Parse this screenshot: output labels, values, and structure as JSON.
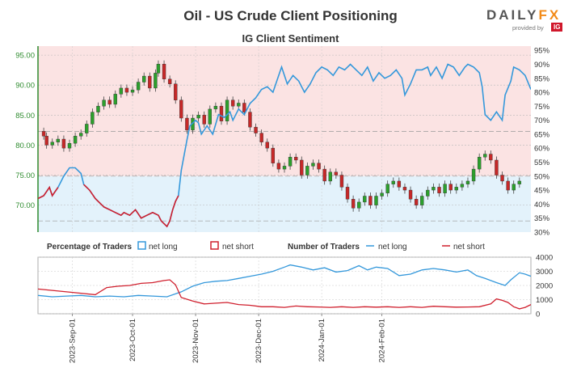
{
  "header": {
    "title": "Oil - US Crude Client Positioning",
    "subtitle": "IG Client Sentiment",
    "logo_text": "DAILYFX",
    "logo_provided": "provided by",
    "logo_ig": "IG"
  },
  "colors": {
    "up_candle": "#2ca02c",
    "down_candle": "#c62828",
    "net_long": "#3498db",
    "net_short": "#d0202e",
    "long_zone": "#e3f2fb",
    "short_zone": "#fbe3e3",
    "price_axis": "#2e8b2e"
  },
  "chart_data": [
    {
      "type": "candlestick+line",
      "title": "IG Client Sentiment",
      "price_axis": {
        "ticks": [
          "70.00",
          "75.00",
          "80.00",
          "85.00",
          "90.00",
          "95.00"
        ],
        "range": [
          65.5,
          96.5
        ]
      },
      "pct_axis": {
        "ticks": [
          "30%",
          "35%",
          "40%",
          "45%",
          "50%",
          "55%",
          "60%",
          "65%",
          "70%",
          "75%",
          "80%",
          "85%",
          "90%",
          "95%"
        ],
        "range": [
          30,
          96.5
        ]
      },
      "percentage_long": [
        [
          0,
          42
        ],
        [
          2,
          43
        ],
        [
          4,
          46
        ],
        [
          5,
          43
        ],
        [
          7,
          46
        ],
        [
          9,
          50
        ],
        [
          11,
          53
        ],
        [
          13,
          53
        ],
        [
          15,
          51
        ],
        [
          16,
          47
        ],
        [
          18,
          45
        ],
        [
          20,
          42
        ],
        [
          22,
          40
        ],
        [
          23,
          39
        ],
        [
          25,
          38
        ],
        [
          27,
          37
        ],
        [
          29,
          36
        ],
        [
          30,
          37
        ],
        [
          32,
          36
        ],
        [
          34,
          38
        ],
        [
          36,
          35
        ],
        [
          38,
          36
        ],
        [
          40,
          37
        ],
        [
          42,
          36
        ],
        [
          43,
          34
        ],
        [
          45,
          32
        ],
        [
          46,
          34
        ],
        [
          47,
          38
        ],
        [
          48,
          41
        ],
        [
          49,
          43
        ],
        [
          50,
          52
        ],
        [
          52,
          63
        ],
        [
          53,
          68
        ],
        [
          55,
          70
        ],
        [
          56,
          69
        ],
        [
          57,
          65
        ],
        [
          59,
          68
        ],
        [
          61,
          65
        ],
        [
          63,
          72
        ],
        [
          65,
          71
        ],
        [
          67,
          73
        ],
        [
          68,
          70
        ],
        [
          70,
          74
        ],
        [
          72,
          72
        ],
        [
          74,
          76
        ],
        [
          76,
          78
        ],
        [
          78,
          81
        ],
        [
          80,
          82
        ],
        [
          82,
          80
        ],
        [
          84,
          86
        ],
        [
          85,
          89
        ],
        [
          87,
          83
        ],
        [
          89,
          86
        ],
        [
          91,
          84
        ],
        [
          93,
          80
        ],
        [
          95,
          83
        ],
        [
          97,
          87
        ],
        [
          99,
          89
        ],
        [
          101,
          88
        ],
        [
          103,
          86
        ],
        [
          105,
          89
        ],
        [
          107,
          88
        ],
        [
          109,
          90
        ],
        [
          111,
          88
        ],
        [
          113,
          86
        ],
        [
          115,
          89
        ],
        [
          117,
          84
        ],
        [
          119,
          87
        ],
        [
          121,
          85
        ],
        [
          123,
          86
        ],
        [
          125,
          88
        ],
        [
          127,
          85
        ],
        [
          128,
          79
        ],
        [
          130,
          83
        ],
        [
          132,
          88
        ],
        [
          134,
          88
        ],
        [
          136,
          89
        ],
        [
          137,
          86
        ],
        [
          139,
          89
        ],
        [
          141,
          85
        ],
        [
          143,
          90
        ],
        [
          145,
          89
        ],
        [
          147,
          86
        ],
        [
          149,
          89
        ],
        [
          150,
          90
        ],
        [
          152,
          89
        ],
        [
          154,
          87
        ],
        [
          155,
          82
        ],
        [
          156,
          72
        ],
        [
          158,
          70
        ],
        [
          160,
          73
        ],
        [
          162,
          70
        ],
        [
          163,
          79
        ],
        [
          165,
          84
        ],
        [
          166,
          89
        ],
        [
          168,
          88
        ],
        [
          170,
          86
        ],
        [
          172,
          81
        ]
      ],
      "candles_close": [
        [
          0,
          82.3
        ],
        [
          2,
          81.5
        ],
        [
          3,
          80.0
        ],
        [
          5,
          80.5
        ],
        [
          7,
          81.0
        ],
        [
          9,
          79.5
        ],
        [
          11,
          80.3
        ],
        [
          13,
          81.5
        ],
        [
          15,
          82.0
        ],
        [
          17,
          83.5
        ],
        [
          19,
          85.5
        ],
        [
          21,
          86.5
        ],
        [
          23,
          87.5
        ],
        [
          25,
          86.8
        ],
        [
          27,
          88.5
        ],
        [
          29,
          89.5
        ],
        [
          31,
          88.8
        ],
        [
          33,
          89.2
        ],
        [
          35,
          90.5
        ],
        [
          37,
          91.5
        ],
        [
          39,
          89.5
        ],
        [
          41,
          92.0
        ],
        [
          42,
          93.5
        ],
        [
          44,
          91.0
        ],
        [
          46,
          90.2
        ],
        [
          48,
          87.5
        ],
        [
          50,
          84.5
        ],
        [
          52,
          82.5
        ],
        [
          54,
          84.5
        ],
        [
          56,
          85.0
        ],
        [
          58,
          83.5
        ],
        [
          60,
          86.0
        ],
        [
          62,
          86.5
        ],
        [
          64,
          84.0
        ],
        [
          66,
          87.5
        ],
        [
          68,
          86.5
        ],
        [
          70,
          87.0
        ],
        [
          72,
          85.5
        ],
        [
          74,
          83.0
        ],
        [
          76,
          82.0
        ],
        [
          78,
          80.5
        ],
        [
          80,
          79.5
        ],
        [
          82,
          77.0
        ],
        [
          84,
          76.0
        ],
        [
          86,
          76.5
        ],
        [
          88,
          78.0
        ],
        [
          90,
          77.5
        ],
        [
          92,
          75.0
        ],
        [
          94,
          76.5
        ],
        [
          96,
          77.0
        ],
        [
          98,
          76.0
        ],
        [
          100,
          74.0
        ],
        [
          102,
          75.5
        ],
        [
          104,
          75.0
        ],
        [
          106,
          73.0
        ],
        [
          108,
          71.0
        ],
        [
          110,
          69.5
        ],
        [
          112,
          70.5
        ],
        [
          114,
          71.5
        ],
        [
          116,
          70.0
        ],
        [
          118,
          71.5
        ],
        [
          120,
          72.0
        ],
        [
          122,
          73.5
        ],
        [
          124,
          74.0
        ],
        [
          126,
          73.0
        ],
        [
          128,
          72.5
        ],
        [
          130,
          71.0
        ],
        [
          132,
          70.0
        ],
        [
          134,
          71.5
        ],
        [
          136,
          72.5
        ],
        [
          138,
          73.0
        ],
        [
          140,
          72.0
        ],
        [
          142,
          73.5
        ],
        [
          144,
          72.5
        ],
        [
          146,
          73.0
        ],
        [
          148,
          73.5
        ],
        [
          150,
          74.0
        ],
        [
          152,
          76.0
        ],
        [
          154,
          78.0
        ],
        [
          156,
          78.5
        ],
        [
          158,
          77.5
        ],
        [
          160,
          75.0
        ],
        [
          162,
          74.0
        ],
        [
          164,
          72.5
        ],
        [
          166,
          73.5
        ],
        [
          168,
          74.0
        ]
      ],
      "x_ticks": [
        "2023-Sep-01",
        "2023-Oct-01",
        "2023-Nov-01",
        "2023-Dec-01",
        "2024-Jan-01",
        "2024-Feb-01"
      ],
      "legend_1": {
        "title": "Percentage of Traders",
        "items": [
          "net long",
          "net short"
        ]
      },
      "legend_2": {
        "title": "Number of Traders",
        "items": [
          "net long",
          "net short"
        ]
      }
    },
    {
      "type": "line",
      "y_ticks": [
        "0",
        "1000",
        "2000",
        "3000",
        "4000"
      ],
      "ylim": [
        0,
        4000
      ],
      "series": [
        {
          "name": "net long",
          "values": [
            [
              0,
              1300
            ],
            [
              5,
              1200
            ],
            [
              10,
              1250
            ],
            [
              15,
              1300
            ],
            [
              20,
              1200
            ],
            [
              25,
              1250
            ],
            [
              30,
              1200
            ],
            [
              35,
              1300
            ],
            [
              40,
              1250
            ],
            [
              45,
              1200
            ],
            [
              50,
              1550
            ],
            [
              54,
              1950
            ],
            [
              58,
              2200
            ],
            [
              62,
              2300
            ],
            [
              66,
              2350
            ],
            [
              70,
              2500
            ],
            [
              74,
              2650
            ],
            [
              78,
              2800
            ],
            [
              82,
              3000
            ],
            [
              86,
              3300
            ],
            [
              88,
              3450
            ],
            [
              92,
              3300
            ],
            [
              96,
              3100
            ],
            [
              100,
              3250
            ],
            [
              104,
              2950
            ],
            [
              108,
              3050
            ],
            [
              112,
              3400
            ],
            [
              115,
              3100
            ],
            [
              118,
              3300
            ],
            [
              122,
              3200
            ],
            [
              126,
              2700
            ],
            [
              130,
              2800
            ],
            [
              134,
              3100
            ],
            [
              138,
              3200
            ],
            [
              142,
              3100
            ],
            [
              146,
              2950
            ],
            [
              150,
              3100
            ],
            [
              153,
              2700
            ],
            [
              156,
              2500
            ],
            [
              160,
              2200
            ],
            [
              163,
              2000
            ],
            [
              165,
              2400
            ],
            [
              168,
              2900
            ],
            [
              170,
              2800
            ],
            [
              172,
              2650
            ]
          ]
        },
        {
          "name": "net short",
          "values": [
            [
              0,
              1750
            ],
            [
              5,
              1650
            ],
            [
              10,
              1550
            ],
            [
              15,
              1450
            ],
            [
              20,
              1350
            ],
            [
              24,
              1850
            ],
            [
              28,
              1950
            ],
            [
              32,
              2000
            ],
            [
              36,
              2150
            ],
            [
              40,
              2200
            ],
            [
              44,
              2350
            ],
            [
              46,
              2400
            ],
            [
              48,
              2050
            ],
            [
              50,
              1150
            ],
            [
              54,
              900
            ],
            [
              58,
              700
            ],
            [
              62,
              750
            ],
            [
              66,
              800
            ],
            [
              70,
              650
            ],
            [
              74,
              600
            ],
            [
              78,
              500
            ],
            [
              82,
              500
            ],
            [
              86,
              450
            ],
            [
              90,
              550
            ],
            [
              94,
              500
            ],
            [
              98,
              480
            ],
            [
              102,
              450
            ],
            [
              106,
              500
            ],
            [
              110,
              450
            ],
            [
              114,
              500
            ],
            [
              118,
              470
            ],
            [
              122,
              500
            ],
            [
              126,
              450
            ],
            [
              130,
              500
            ],
            [
              134,
              450
            ],
            [
              138,
              530
            ],
            [
              142,
              500
            ],
            [
              146,
              470
            ],
            [
              150,
              480
            ],
            [
              154,
              500
            ],
            [
              158,
              700
            ],
            [
              160,
              1050
            ],
            [
              162,
              950
            ],
            [
              164,
              800
            ],
            [
              166,
              500
            ],
            [
              168,
              350
            ],
            [
              170,
              450
            ],
            [
              172,
              650
            ]
          ]
        }
      ]
    }
  ]
}
